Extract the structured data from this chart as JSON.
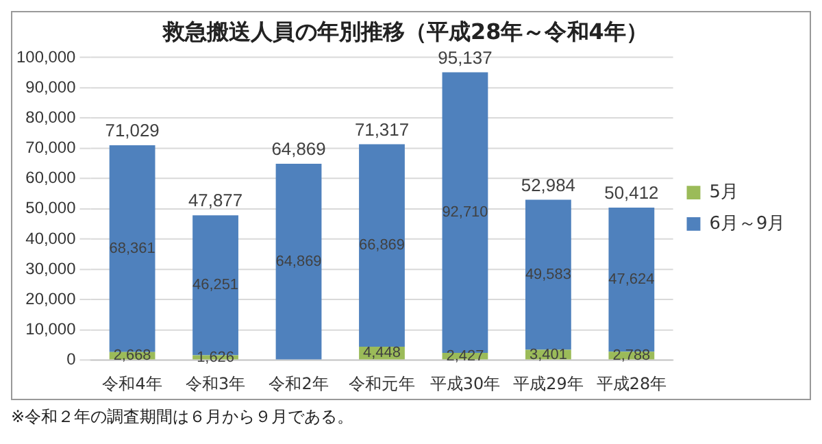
{
  "chart_data": {
    "type": "bar",
    "title": "救急搬送人員の年別推移（平成28年～令和4年）",
    "categories": [
      "令和4年",
      "令和3年",
      "令和2年",
      "令和元年",
      "平成30年",
      "平成29年",
      "平成28年"
    ],
    "series": [
      {
        "name": "5月",
        "color": "#9bbb59",
        "values": [
          2668,
          1626,
          null,
          4448,
          2427,
          3401,
          2788
        ],
        "value_labels": [
          "2,668",
          "1,626",
          null,
          "4,448",
          "2,427",
          "3,401",
          "2,788"
        ]
      },
      {
        "name": "6月～9月",
        "color": "#4f81bd",
        "values": [
          68361,
          46251,
          64869,
          66869,
          92710,
          49583,
          47624
        ],
        "value_labels": [
          "68,361",
          "46,251",
          "64,869",
          "66,869",
          "92,710",
          "49,583",
          "47,624"
        ]
      }
    ],
    "stacked": true,
    "totals": [
      "71,029",
      "47,877",
      "64,869",
      "71,317",
      "95,137",
      "52,984",
      "50,412"
    ],
    "ylim": [
      0,
      100000
    ],
    "yticks": [
      0,
      {
        "value": 10000,
        "label": "10,000"
      },
      {
        "value": 20000,
        "label": "20,000"
      },
      {
        "value": 30000,
        "label": "30,000"
      },
      {
        "value": 40000,
        "label": "40,000"
      },
      {
        "value": 50000,
        "label": "50,000"
      },
      {
        "value": 60000,
        "label": "60,000"
      },
      {
        "value": 70000,
        "label": "70,000"
      },
      {
        "value": 80000,
        "label": "80,000"
      },
      {
        "value": 90000,
        "label": "90,000"
      },
      {
        "value": 100000,
        "label": "100,000"
      }
    ],
    "grid": "y",
    "legend": "right",
    "annotations": [
      "※令和２年の調査期間は６月から９月である。"
    ]
  }
}
